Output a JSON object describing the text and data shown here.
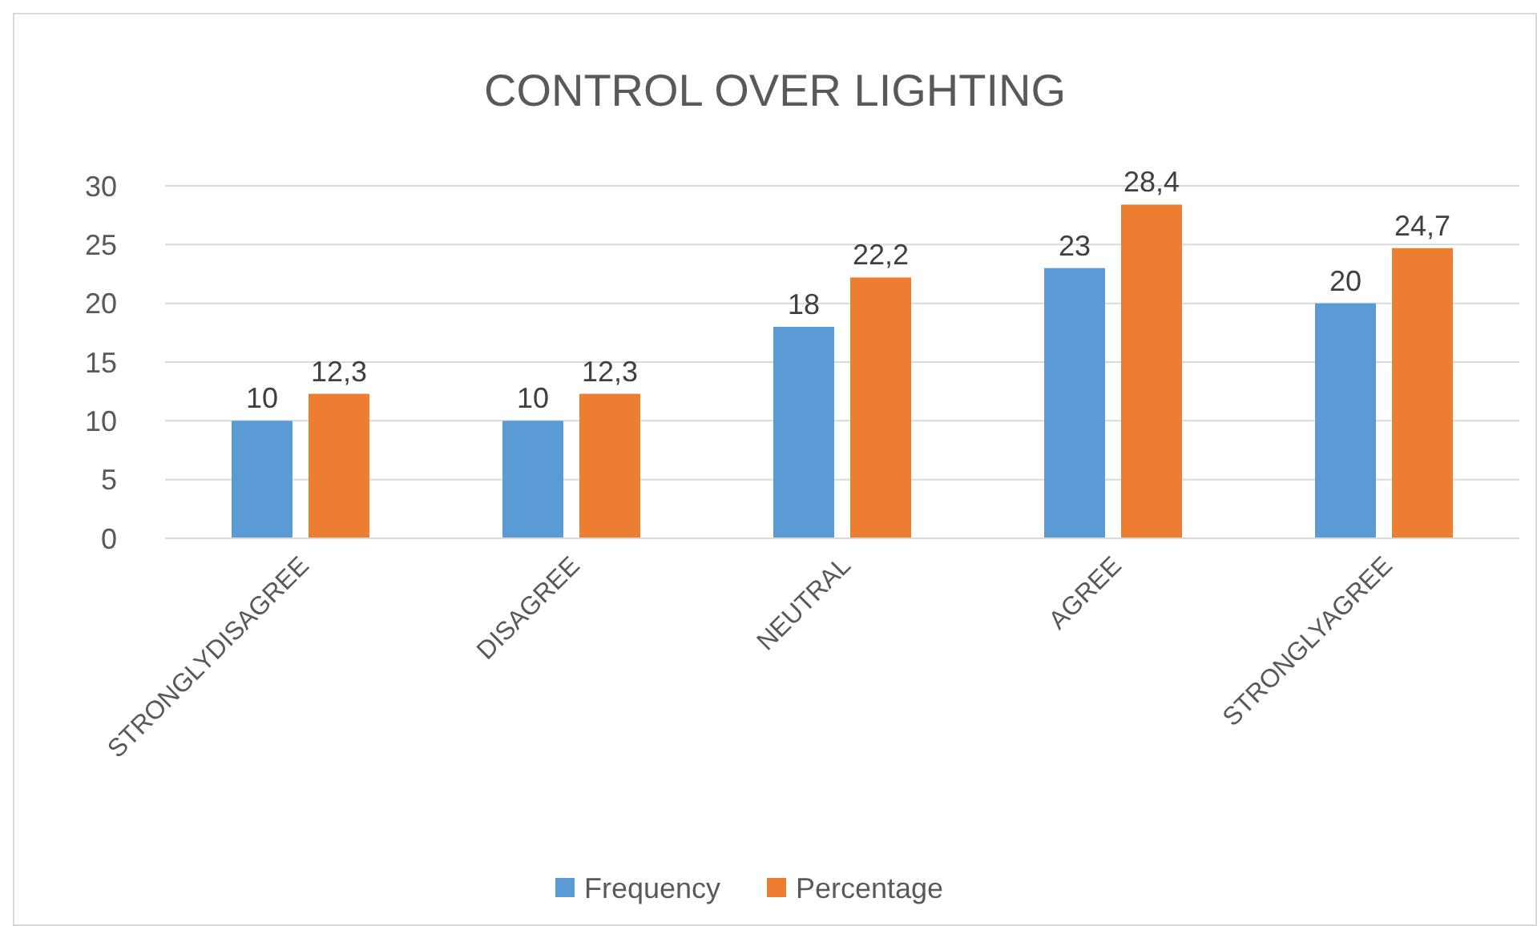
{
  "chart_data": {
    "type": "bar",
    "title": "CONTROL OVER LIGHTING",
    "categories": [
      "STRONGLYDISAGREE",
      "DISAGREE",
      "NEUTRAL",
      "AGREE",
      "STRONGLYAGREE"
    ],
    "series": [
      {
        "name": "Frequency",
        "color": "#5b9bd5",
        "values": [
          10,
          10,
          18,
          23,
          20
        ],
        "value_labels": [
          "10",
          "10",
          "18",
          "23",
          "20"
        ]
      },
      {
        "name": "Percentage",
        "color": "#ed7d31",
        "values": [
          12.3,
          12.3,
          22.2,
          28.4,
          24.7
        ],
        "value_labels": [
          "12,3",
          "12,3",
          "22,2",
          "28,4",
          "24,7"
        ]
      }
    ],
    "ylim": [
      0,
      30
    ],
    "yticks": [
      0,
      5,
      10,
      15,
      20,
      25,
      30
    ],
    "grid": "y",
    "legend": "bottom"
  }
}
